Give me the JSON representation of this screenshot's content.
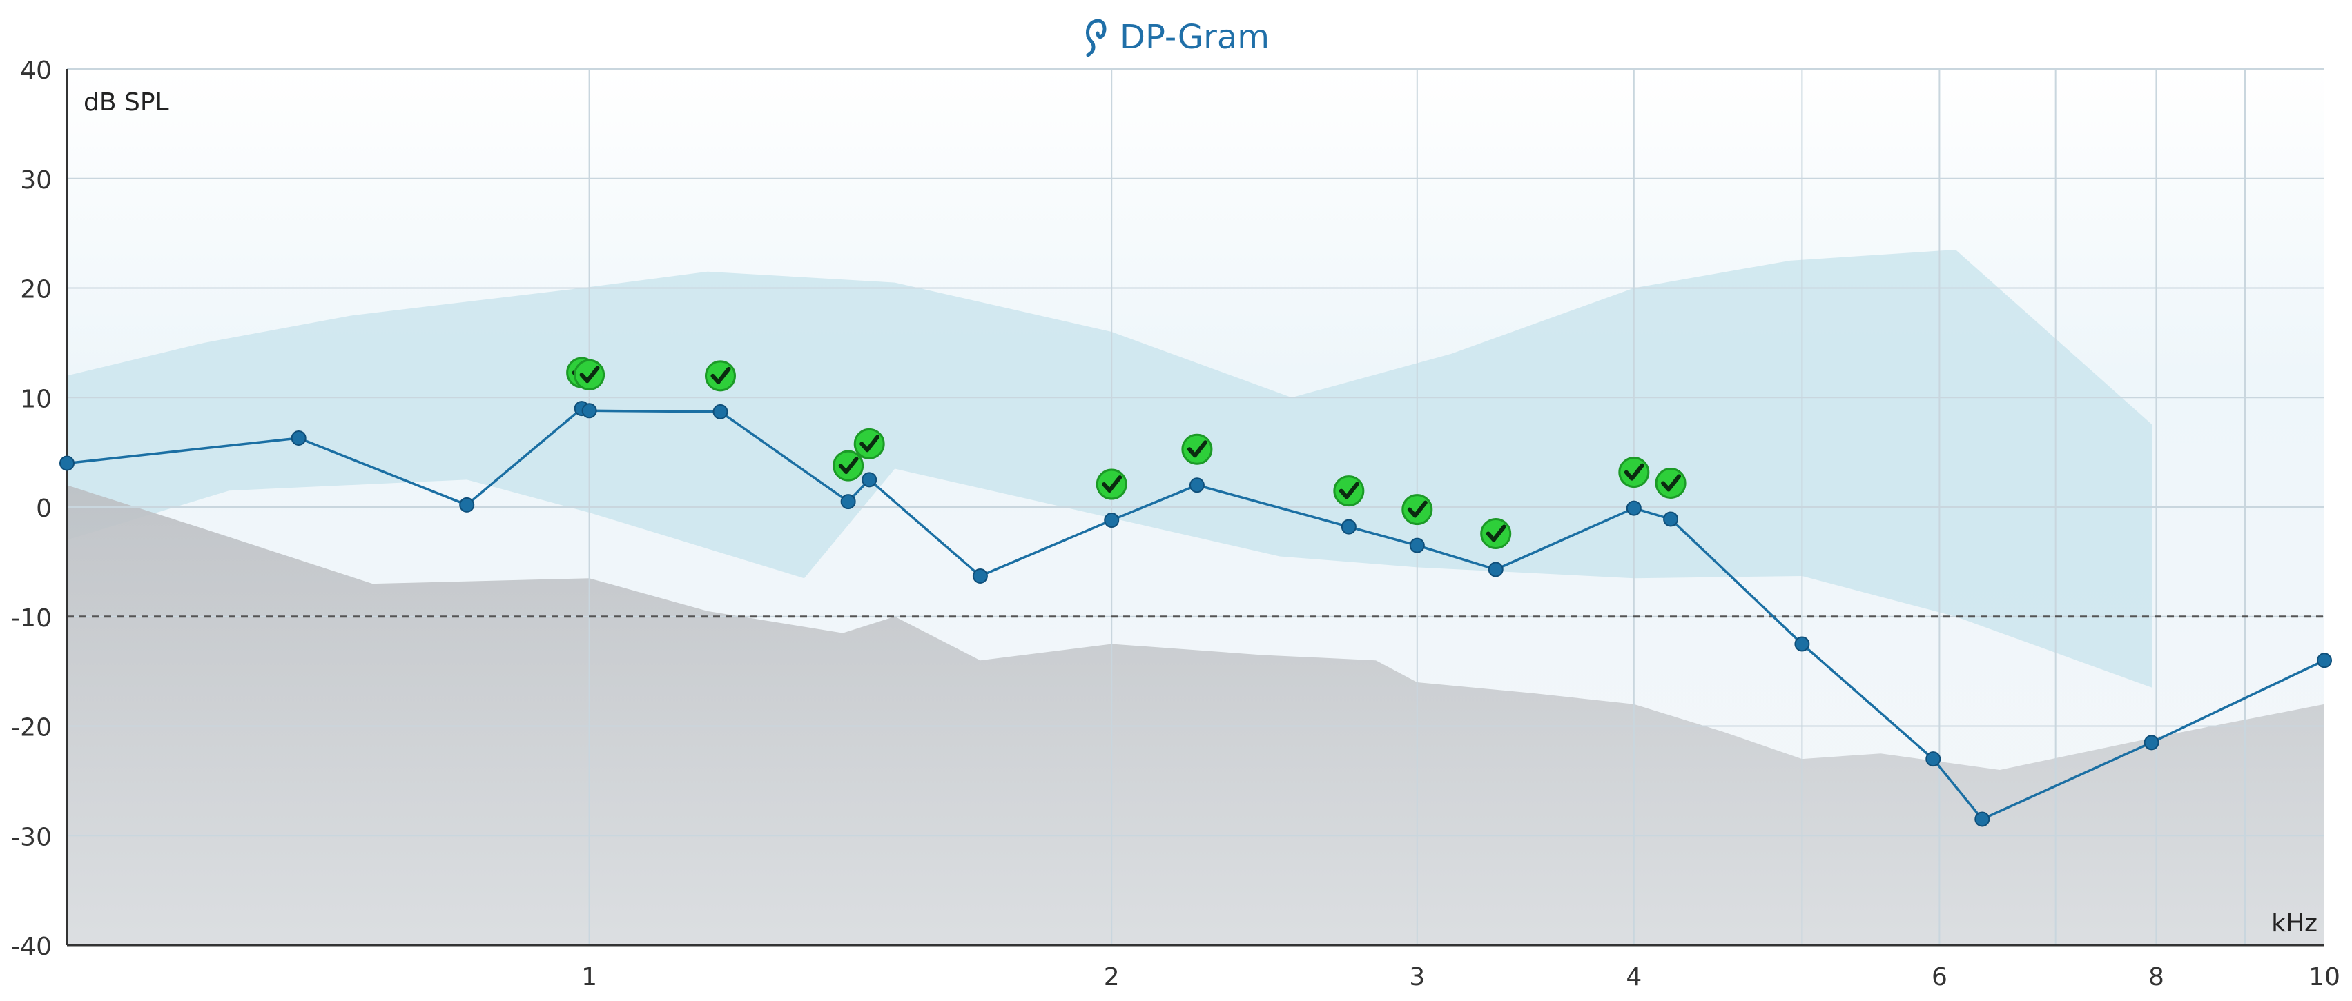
{
  "chart_data": {
    "type": "line",
    "title": "DP-Gram",
    "ylabel": "dB SPL",
    "xlabel": "kHz",
    "ylim": [
      -40,
      40
    ],
    "yticks": [
      40,
      30,
      20,
      10,
      0,
      -10,
      -20,
      -30,
      -40
    ],
    "ytick_labels": [
      "40",
      "30",
      "20",
      "10",
      "0",
      "-10",
      "-20",
      "-30",
      "-40"
    ],
    "x_scale": "log",
    "xlim": [
      0.5,
      10
    ],
    "xticks": [
      1,
      2,
      3,
      4,
      6,
      8,
      10
    ],
    "xtick_labels": [
      "1",
      "2",
      "3",
      "4",
      "6",
      "8",
      "10"
    ],
    "vgrid_x": [
      1,
      2,
      3,
      4,
      5,
      6,
      7,
      8,
      9
    ],
    "reference_line_db": -10,
    "grid": true,
    "colors": {
      "series": "#1b6fa3",
      "normal_band": "#c7e3ec",
      "noise_floor": "#b9bcc0",
      "pass_check": "#2ecf3a",
      "reference_line": "#555555",
      "title": "#1f6fa8"
    },
    "series": [
      {
        "x": [
          0.5,
          0.68,
          0.85,
          0.99,
          1.0,
          1.19,
          1.41,
          1.45,
          1.68,
          2.0,
          2.24,
          2.74,
          3.0,
          3.33,
          4.0,
          4.2,
          5.0,
          5.95,
          6.35,
          7.95,
          10.0
        ],
        "y": [
          4,
          6.3,
          0.2,
          9,
          8.8,
          8.7,
          0.5,
          2.5,
          -6.3,
          -1.2,
          2,
          -1.8,
          -3.5,
          -5.7,
          -0.1,
          -1.1,
          -12.5,
          -23,
          -28.5,
          -21.5,
          -14
        ],
        "pass": [
          false,
          false,
          false,
          true,
          true,
          true,
          true,
          true,
          false,
          true,
          true,
          true,
          true,
          true,
          true,
          true,
          false,
          false,
          false,
          false,
          false
        ]
      }
    ],
    "normal_band_upper": {
      "x": [
        0.5,
        0.6,
        0.73,
        0.99,
        1.17,
        1.5,
        2.0,
        2.54,
        3.14,
        4.0,
        4.92,
        6.13,
        7.96
      ],
      "y": [
        12,
        15,
        17.5,
        20,
        21.5,
        20.5,
        16,
        10,
        14,
        20,
        22.5,
        23.5,
        7.5
      ]
    },
    "normal_band_lower": {
      "x": [
        7.96,
        6.13,
        5.0,
        4.0,
        3.0,
        2.5,
        2.0,
        1.5,
        1.33,
        1.0,
        0.85,
        0.62,
        0.5
      ],
      "y": [
        -16.5,
        -10,
        -6.3,
        -6.5,
        -5.5,
        -4.5,
        -1,
        3.5,
        -6.5,
        -0.5,
        2.5,
        1.5,
        -3
      ]
    },
    "noise_floor_upper": {
      "x": [
        0.5,
        0.6,
        0.75,
        1.0,
        1.17,
        1.4,
        1.5,
        1.68,
        2.0,
        2.44,
        2.84,
        3.0,
        3.5,
        4.0,
        4.5,
        5.0,
        5.55,
        6.5,
        8.0,
        10.0
      ],
      "y": [
        2,
        -2,
        -7,
        -6.5,
        -9.5,
        -11.5,
        -10,
        -14,
        -12.5,
        -13.5,
        -14,
        -16,
        -17,
        -18,
        -20.5,
        -23,
        -22.5,
        -24,
        -21,
        -18
      ]
    }
  }
}
